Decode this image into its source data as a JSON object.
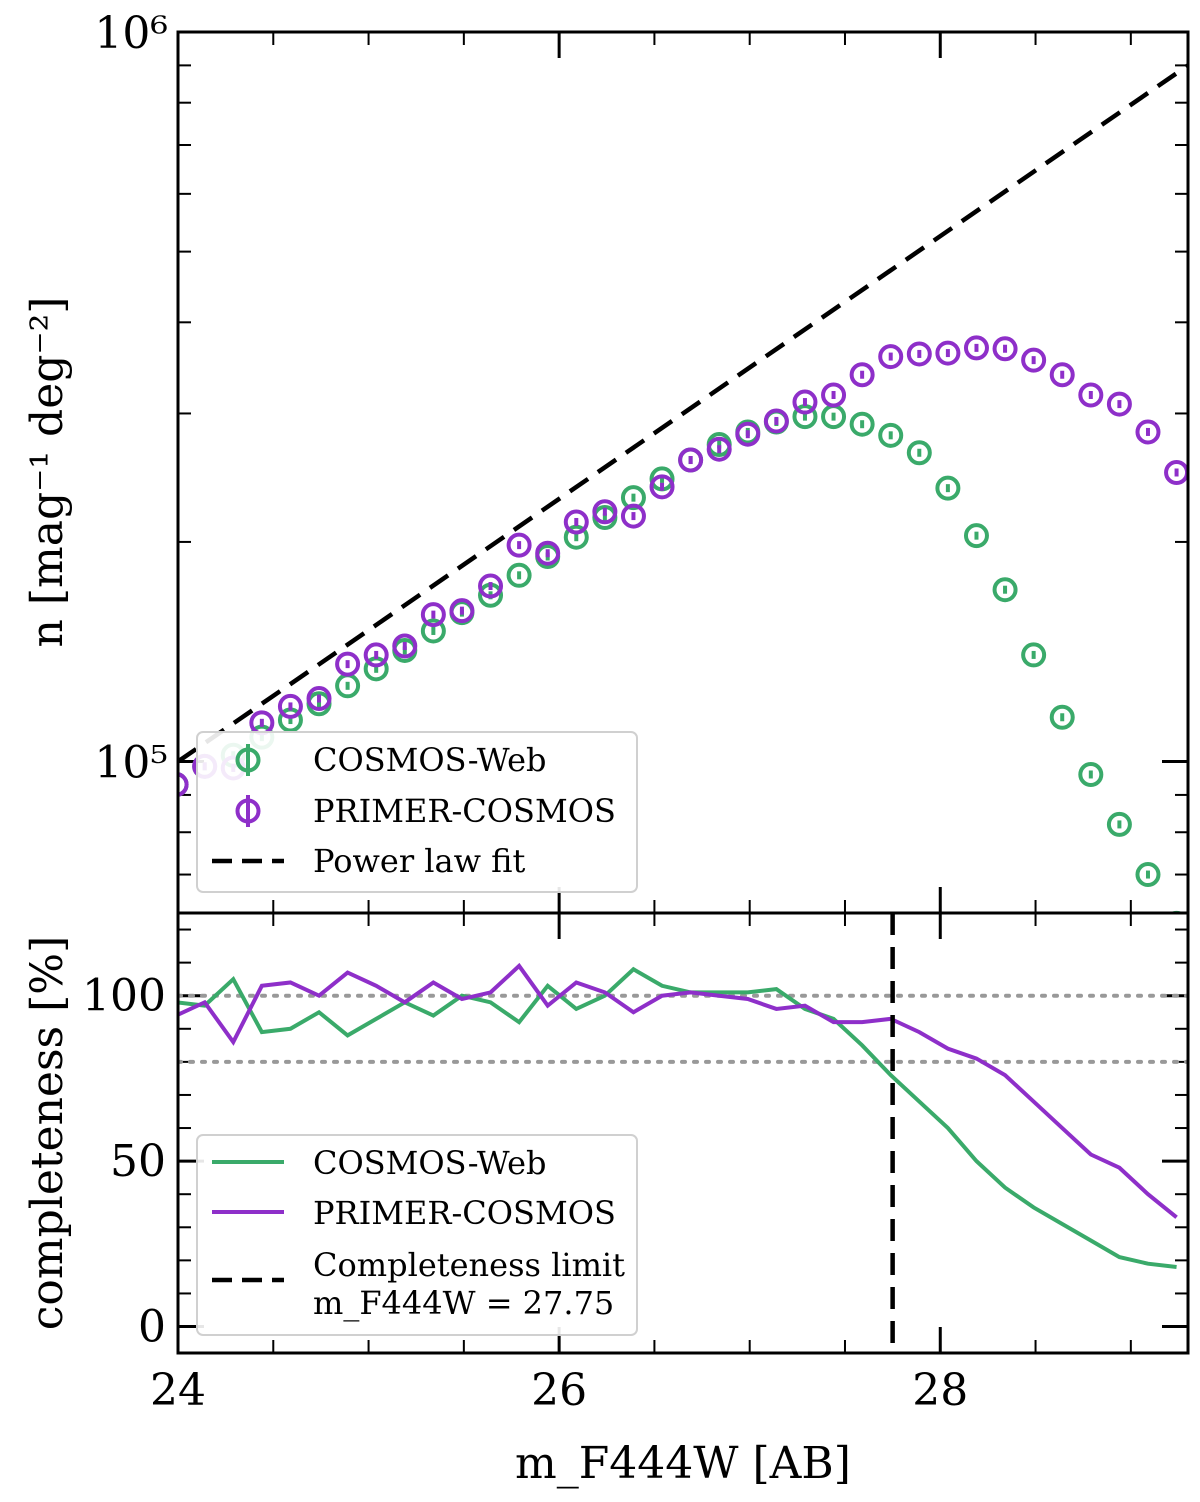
{
  "chart_data": [
    {
      "type": "scatter",
      "panel": "top",
      "ylabel": "n [mag⁻¹ deg⁻²]",
      "yscale": "log",
      "ylim": [
        62000,
        1000000
      ],
      "xlim": [
        24,
        29.3
      ],
      "tick_labels": {
        "y_major": [
          "10⁵",
          "10⁶"
        ]
      },
      "legend_position": "lower-left",
      "series": [
        {
          "name": "COSMOS-Web",
          "color": "#3aaa6a",
          "marker": "open-circle-with-errorbar",
          "x": [
            23.99,
            24.14,
            24.29,
            24.44,
            24.59,
            24.74,
            24.89,
            25.04,
            25.19,
            25.34,
            25.49,
            25.64,
            25.79,
            25.94,
            26.09,
            26.24,
            26.39,
            26.54,
            26.69,
            26.84,
            26.99,
            27.14,
            27.29,
            27.44,
            27.59,
            27.74,
            27.89,
            28.04,
            28.19,
            28.34,
            28.49,
            28.64,
            28.79,
            28.94,
            29.09,
            29.24
          ],
          "y": [
            93000,
            98500,
            102000,
            108000,
            114000,
            120000,
            127000,
            134000,
            142000,
            151000,
            160000,
            169000,
            180000,
            191000,
            203000,
            216000,
            230000,
            244000,
            259000,
            272000,
            283000,
            292000,
            297000,
            297000,
            290000,
            280000,
            265000,
            237000,
            204000,
            172000,
            140000,
            115000,
            96000,
            82000,
            70000,
            60000
          ]
        },
        {
          "name": "PRIMER-COSMOS",
          "color": "#8e2fc9",
          "marker": "open-circle-with-errorbar",
          "x": [
            23.99,
            24.14,
            24.29,
            24.44,
            24.59,
            24.74,
            24.89,
            25.04,
            25.19,
            25.34,
            25.49,
            25.64,
            25.79,
            25.94,
            26.09,
            26.24,
            26.39,
            26.54,
            26.69,
            26.84,
            26.99,
            27.14,
            27.29,
            27.44,
            27.59,
            27.74,
            27.89,
            28.04,
            28.19,
            28.34,
            28.49,
            28.64,
            28.79,
            28.94,
            29.09,
            29.24
          ],
          "y": [
            93000,
            98500,
            98000,
            113000,
            119000,
            122000,
            136000,
            140000,
            144000,
            159000,
            161000,
            174000,
            198000,
            193000,
            213000,
            220000,
            217000,
            238000,
            259000,
            268000,
            281000,
            293000,
            311000,
            318000,
            339000,
            359000,
            362000,
            363000,
            369000,
            368000,
            355000,
            339000,
            318000,
            309000,
            283000,
            249000
          ]
        },
        {
          "name": "Power law fit",
          "type": "line",
          "style": "dashed",
          "color": "#000000",
          "x": [
            24.0,
            29.3
          ],
          "y": [
            100000,
            900000
          ]
        }
      ]
    },
    {
      "type": "line",
      "panel": "bottom",
      "xlabel": "m_F444W [AB]",
      "ylabel": "completeness [%]",
      "xlim": [
        24,
        29.3
      ],
      "ylim": [
        -8,
        125
      ],
      "tick_labels": {
        "x": [
          "24",
          "26",
          "28"
        ],
        "y": [
          "0",
          "50",
          "100"
        ]
      },
      "reference_lines": [
        100,
        80
      ],
      "legend_position": "lower-left",
      "series": [
        {
          "name": "COSMOS-Web",
          "color": "#3aaa6a",
          "x": [
            23.99,
            24.14,
            24.29,
            24.44,
            24.59,
            24.74,
            24.89,
            25.04,
            25.19,
            25.34,
            25.49,
            25.64,
            25.79,
            25.94,
            26.09,
            26.24,
            26.39,
            26.54,
            26.69,
            26.84,
            26.99,
            27.14,
            27.29,
            27.44,
            27.59,
            27.74,
            27.89,
            28.04,
            28.19,
            28.34,
            28.49,
            28.64,
            28.79,
            28.94,
            29.09,
            29.24
          ],
          "y": [
            98,
            97,
            105,
            89,
            90,
            95,
            88,
            93,
            98,
            94,
            100,
            98,
            92,
            103,
            96,
            100,
            108,
            103,
            101,
            101,
            101,
            102,
            96,
            93,
            85,
            76,
            68,
            60,
            50,
            42,
            36,
            31,
            26,
            21,
            19,
            18
          ]
        },
        {
          "name": "PRIMER-COSMOS",
          "color": "#8e2fc9",
          "x": [
            23.99,
            24.14,
            24.29,
            24.44,
            24.59,
            24.74,
            24.89,
            25.04,
            25.19,
            25.34,
            25.49,
            25.64,
            25.79,
            25.94,
            26.09,
            26.24,
            26.39,
            26.54,
            26.69,
            26.84,
            26.99,
            27.14,
            27.29,
            27.44,
            27.59,
            27.74,
            27.89,
            28.04,
            28.19,
            28.34,
            28.49,
            28.64,
            28.79,
            28.94,
            29.09,
            29.24
          ],
          "y": [
            94,
            98,
            86,
            103,
            104,
            100,
            107,
            103,
            98,
            104,
            99,
            101,
            109,
            97,
            104,
            101,
            95,
            100,
            101,
            100,
            99,
            96,
            97,
            92,
            92,
            93,
            89,
            84,
            81,
            76,
            68,
            60,
            52,
            48,
            40,
            33
          ]
        },
        {
          "name": "Completeness limit",
          "name_line2": "m_F444W = 27.75",
          "type": "vline",
          "style": "dashed",
          "color": "#000000",
          "x": 27.75
        }
      ]
    }
  ]
}
